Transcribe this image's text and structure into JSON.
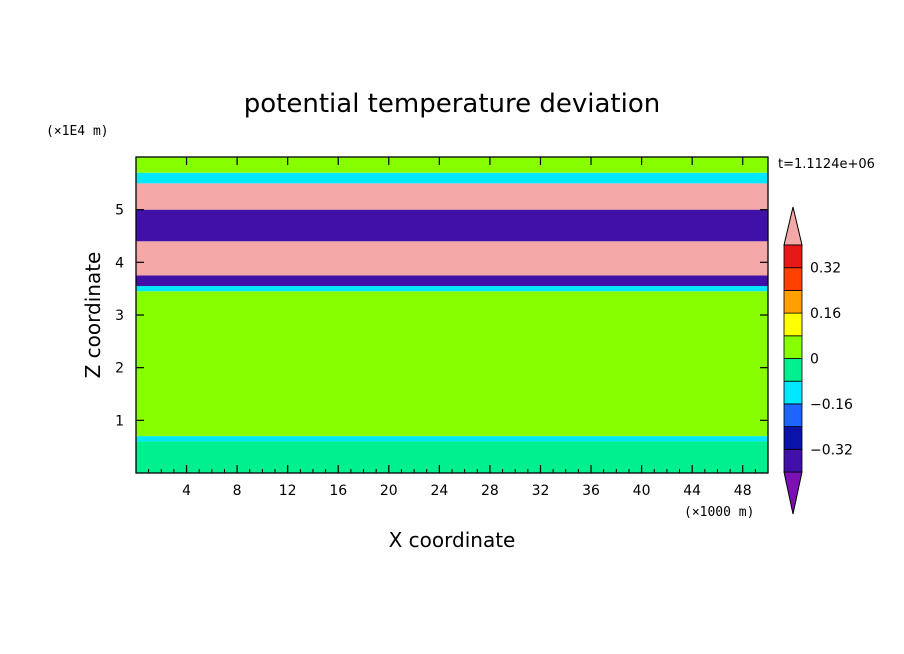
{
  "chart_data": {
    "type": "contour",
    "title": "potential temperature deviation",
    "xlabel": "X coordinate",
    "ylabel": "Z coordinate",
    "x_unit": "(×1000 m)",
    "y_unit": "(×1E4 m)",
    "time_label": "t=1.1124e+06",
    "xlim": [
      0,
      50
    ],
    "ylim": [
      0,
      6
    ],
    "x_ticks": [
      4,
      8,
      12,
      16,
      20,
      24,
      28,
      32,
      36,
      40,
      44,
      48
    ],
    "y_ticks": [
      1,
      2,
      3,
      4,
      5
    ],
    "colorbar": {
      "levels": [
        -0.4,
        -0.32,
        -0.24,
        -0.16,
        -0.08,
        0,
        0.08,
        0.16,
        0.24,
        0.32,
        0.4
      ],
      "colors": [
        "#7b10b4",
        "#4010a8",
        "#0a12a8",
        "#1e64ff",
        "#00e8ff",
        "#00f090",
        "#88ff00",
        "#ffff00",
        "#ffa000",
        "#ff4000",
        "#e81818",
        "#f4a8a8"
      ],
      "labels": [
        {
          "value": -0.32,
          "text": "−0.32"
        },
        {
          "value": -0.16,
          "text": "−0.16"
        },
        {
          "value": 0,
          "text": "0"
        },
        {
          "value": 0.16,
          "text": "0.16"
        },
        {
          "value": 0.32,
          "text": "0.32"
        }
      ],
      "extend": "both"
    },
    "bands": [
      {
        "z": [
          0,
          0.6
        ],
        "color": "#00f090"
      },
      {
        "z": [
          0.6,
          0.7
        ],
        "color": "#00e8ff"
      },
      {
        "z": [
          0.7,
          3.45
        ],
        "color": "#88ff00"
      },
      {
        "z": [
          3.45,
          3.55
        ],
        "color": "#00e8ff"
      },
      {
        "z": [
          3.55,
          3.75
        ],
        "color": "#4010a8"
      },
      {
        "z": [
          3.75,
          4.4
        ],
        "color": "#f4a8a8"
      },
      {
        "z": [
          4.4,
          5.0
        ],
        "color": "#4010a8"
      },
      {
        "z": [
          5.0,
          5.5
        ],
        "color": "#f4a8a8"
      },
      {
        "z": [
          5.5,
          5.7
        ],
        "color": "#00e8ff"
      },
      {
        "z": [
          5.7,
          6.0
        ],
        "color": "#88ff00"
      }
    ]
  }
}
